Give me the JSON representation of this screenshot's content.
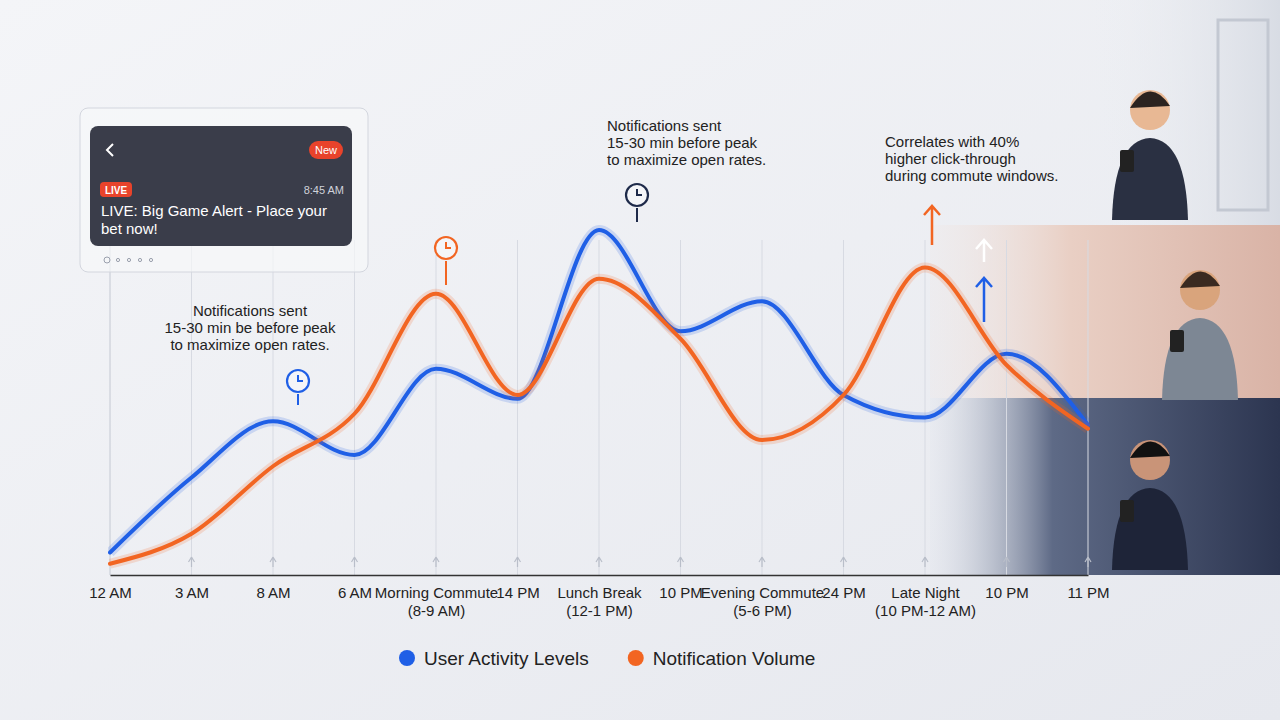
{
  "chart_data": {
    "type": "line",
    "categories": [
      "12 AM",
      "3 AM",
      "8 AM",
      "6 AM",
      "Morning Commute (8-9 AM)",
      "14 PM",
      "Lunch Break (12-1 PM)",
      "10 PM",
      "Evening Commute (5-6 PM)",
      "24 PM",
      "Late Night (10 PM-12 AM)",
      "10 PM",
      "11 PM"
    ],
    "series": [
      {
        "name": "User Activity Levels",
        "color": "#1f5fe6",
        "values": [
          6,
          26,
          41,
          32,
          55,
          47,
          92,
          65,
          73,
          48,
          42,
          59,
          40
        ]
      },
      {
        "name": "Notification Volume",
        "color": "#f26522",
        "values": [
          3,
          11,
          29,
          43,
          75,
          48,
          79,
          63,
          36,
          48,
          82,
          56,
          39
        ]
      }
    ],
    "ylim": [
      0,
      100
    ],
    "tick_labels": "x",
    "grid": true,
    "legend": "bottom",
    "annotations": [
      {
        "lines": [
          "Notifications sent",
          "15-30 min be before peak",
          "to maximize open rates."
        ]
      },
      {
        "lines": [
          "Notifications sent",
          "15-30 min before peak",
          "to maximize open rates."
        ]
      },
      {
        "lines": [
          "Correlates with 40%",
          "higher click-through",
          "during commute windows."
        ]
      }
    ],
    "notification": {
      "badge": "New",
      "tag": "LIVE",
      "time": "8:45 AM",
      "lines": [
        "LIVE: Big Game Alert - Place your",
        "bet now!"
      ]
    }
  }
}
